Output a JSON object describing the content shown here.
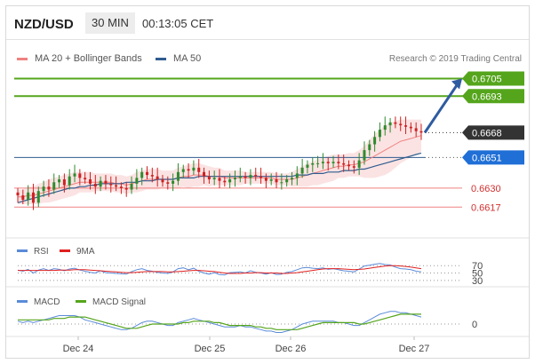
{
  "header": {
    "symbol": "NZD/USD",
    "timeframe": "30 MIN",
    "time": "00:13:05 CET"
  },
  "legend": {
    "items": [
      {
        "label": "MA 20 + Bollinger Bands",
        "color": "#f08080"
      },
      {
        "label": "MA 50",
        "color": "#2f5c8f"
      }
    ],
    "copyright": "Research © 2019 Trading Central"
  },
  "colors": {
    "up_candle": "#2e8b2e",
    "down_candle": "#cc2222",
    "band_fill": "#fbe3e3",
    "ma20": "#f08080",
    "ma50": "#2f5c8f",
    "resistance": "#55a51c",
    "support": "#f08080",
    "pivot": "#2f5c8f",
    "arrow": "#2f5ba0",
    "current": "#333333",
    "rsi": "#5b8bd8",
    "rsi9ma": "#e02020",
    "macd": "#5b8bd8",
    "macd_signal": "#55a51c"
  },
  "chart_data": [
    {
      "type": "candlestick",
      "title": "NZD/USD 30 MIN",
      "ylim": [
        0.6605,
        0.6712
      ],
      "x_tick_labels": [
        "Dec 24",
        "Dec 25",
        "Dec 26",
        "Dec 27"
      ],
      "levels": [
        {
          "value": 0.6705,
          "label": "0.6705",
          "kind": "resistance"
        },
        {
          "value": 0.6693,
          "label": "0.6693",
          "kind": "resistance"
        },
        {
          "value": 0.6668,
          "label": "0.6668",
          "kind": "current"
        },
        {
          "value": 0.6651,
          "label": "0.6651",
          "kind": "pivot"
        },
        {
          "value": 0.663,
          "label": "0.6630",
          "kind": "support"
        },
        {
          "value": 0.6617,
          "label": "0.6617",
          "kind": "support"
        }
      ],
      "close": [
        0.6625,
        0.6622,
        0.6627,
        0.662,
        0.6628,
        0.6631,
        0.6629,
        0.6634,
        0.6636,
        0.6632,
        0.6638,
        0.664,
        0.6637,
        0.6636,
        0.6633,
        0.6631,
        0.6635,
        0.6633,
        0.6632,
        0.6631,
        0.663,
        0.6629,
        0.6633,
        0.6637,
        0.6641,
        0.6639,
        0.6638,
        0.6636,
        0.6634,
        0.6633,
        0.6635,
        0.6641,
        0.6643,
        0.6642,
        0.6644,
        0.6641,
        0.6638,
        0.6636,
        0.6637,
        0.6635,
        0.6634,
        0.6636,
        0.6637,
        0.6638,
        0.6637,
        0.6639,
        0.6638,
        0.6637,
        0.6635,
        0.6636,
        0.6634,
        0.6634,
        0.6636,
        0.6637,
        0.664,
        0.6644,
        0.6646,
        0.6647,
        0.6647,
        0.6648,
        0.6647,
        0.6648,
        0.6647,
        0.6646,
        0.6645,
        0.6644,
        0.6649,
        0.6656,
        0.666,
        0.6665,
        0.667,
        0.6673,
        0.6675,
        0.6674,
        0.6673,
        0.6672,
        0.6671,
        0.6669,
        0.6668
      ],
      "ma20": [
        0.6624,
        0.6624,
        0.6625,
        0.6625,
        0.6626,
        0.6627,
        0.6628,
        0.6629,
        0.663,
        0.6631,
        0.6632,
        0.6633,
        0.6634,
        0.6634,
        0.6634,
        0.6634,
        0.6634,
        0.6634,
        0.6634,
        0.6633,
        0.6633,
        0.6632,
        0.6633,
        0.6634,
        0.6635,
        0.6636,
        0.6636,
        0.6636,
        0.6636,
        0.6636,
        0.6636,
        0.6637,
        0.6638,
        0.6638,
        0.6639,
        0.6639,
        0.6639,
        0.6638,
        0.6638,
        0.6638,
        0.6637,
        0.6637,
        0.6637,
        0.6637,
        0.6637,
        0.6637,
        0.6637,
        0.6637,
        0.6637,
        0.6637,
        0.6636,
        0.6636,
        0.6636,
        0.6636,
        0.6637,
        0.6638,
        0.6639,
        0.664,
        0.6641,
        0.6642,
        0.6643,
        0.6644,
        0.6645,
        0.6645,
        0.6646,
        0.6646,
        0.6647,
        0.6648,
        0.665,
        0.6652,
        0.6654,
        0.6656,
        0.6658,
        0.666,
        0.6662,
        0.6663,
        0.6664,
        0.6665,
        0.6666
      ],
      "band_half_width": [
        0.0005,
        0.0005,
        0.0006,
        0.0006,
        0.0007,
        0.0007,
        0.0008,
        0.0008,
        0.0008,
        0.0008,
        0.0008,
        0.0008,
        0.0007,
        0.0007,
        0.0007,
        0.0006,
        0.0006,
        0.0006,
        0.0006,
        0.0006,
        0.0006,
        0.0006,
        0.0006,
        0.0007,
        0.0007,
        0.0007,
        0.0007,
        0.0007,
        0.0006,
        0.0006,
        0.0006,
        0.0007,
        0.0007,
        0.0008,
        0.0008,
        0.0008,
        0.0007,
        0.0007,
        0.0006,
        0.0006,
        0.0005,
        0.0005,
        0.0005,
        0.0005,
        0.0004,
        0.0004,
        0.0004,
        0.0004,
        0.0004,
        0.0004,
        0.0004,
        0.0004,
        0.0004,
        0.0005,
        0.0006,
        0.0007,
        0.0008,
        0.0008,
        0.0009,
        0.0009,
        0.0009,
        0.0009,
        0.0008,
        0.0008,
        0.0008,
        0.0008,
        0.0009,
        0.0011,
        0.0013,
        0.0015,
        0.0016,
        0.0017,
        0.0017,
        0.0016,
        0.0015,
        0.0014,
        0.0013,
        0.0012,
        0.0011
      ],
      "ma50": [
        0.662,
        0.6621,
        0.6622,
        0.6623,
        0.6624,
        0.6625,
        0.6626,
        0.6627,
        0.6628,
        0.6629,
        0.663,
        0.663,
        0.6631,
        0.6631,
        0.6632,
        0.6632,
        0.6633,
        0.6633,
        0.6633,
        0.6633,
        0.6633,
        0.6634,
        0.6634,
        0.6634,
        0.6635,
        0.6635,
        0.6635,
        0.6636,
        0.6636,
        0.6636,
        0.6636,
        0.6637,
        0.6637,
        0.6637,
        0.6637,
        0.6638,
        0.6638,
        0.6638,
        0.6638,
        0.6638,
        0.6638,
        0.6638,
        0.6638,
        0.6638,
        0.6638,
        0.6638,
        0.6638,
        0.6638,
        0.6638,
        0.6638,
        0.6638,
        0.6638,
        0.6638,
        0.6638,
        0.6639,
        0.6639,
        0.6639,
        0.664,
        0.664,
        0.664,
        0.6641,
        0.6641,
        0.6641,
        0.6642,
        0.6642,
        0.6642,
        0.6643,
        0.6643,
        0.6644,
        0.6645,
        0.6646,
        0.6647,
        0.6648,
        0.6649,
        0.665,
        0.6651,
        0.6652,
        0.6653,
        0.6654
      ],
      "projection": {
        "from": 0.6668,
        "to": 0.6705
      }
    },
    {
      "type": "line",
      "legend": [
        "RSI",
        "9MA"
      ],
      "y_tick_labels": [
        "70",
        "50",
        "30"
      ],
      "ylim": [
        20,
        85
      ],
      "rsi": [
        58,
        55,
        60,
        50,
        58,
        62,
        57,
        62,
        60,
        56,
        61,
        63,
        58,
        55,
        52,
        50,
        56,
        51,
        50,
        49,
        48,
        47,
        54,
        59,
        62,
        57,
        55,
        52,
        50,
        49,
        53,
        62,
        64,
        59,
        63,
        55,
        50,
        47,
        51,
        46,
        45,
        51,
        52,
        53,
        50,
        56,
        52,
        50,
        47,
        51,
        46,
        47,
        52,
        54,
        59,
        64,
        65,
        63,
        62,
        64,
        60,
        62,
        59,
        56,
        55,
        53,
        61,
        69,
        71,
        74,
        76,
        73,
        72,
        66,
        62,
        61,
        59,
        55,
        53
      ],
      "ma9": [
        57,
        57,
        57,
        57,
        57,
        57,
        57,
        57,
        58,
        58,
        58,
        59,
        59,
        59,
        58,
        57,
        56,
        55,
        54,
        53,
        52,
        51,
        51,
        52,
        53,
        54,
        54,
        54,
        54,
        53,
        53,
        54,
        55,
        56,
        57,
        57,
        56,
        55,
        54,
        52,
        50,
        49,
        49,
        49,
        50,
        50,
        51,
        51,
        50,
        50,
        50,
        49,
        49,
        50,
        51,
        53,
        55,
        57,
        59,
        61,
        62,
        62,
        62,
        61,
        60,
        59,
        60,
        61,
        63,
        65,
        67,
        69,
        70,
        70,
        69,
        68,
        66,
        64,
        62
      ]
    },
    {
      "type": "line",
      "legend": [
        "MACD",
        "MACD Signal"
      ],
      "y_tick_labels": [
        "0"
      ],
      "ylim": [
        -0.0012,
        0.0012
      ],
      "macd": [
        0.0002,
        0.0001,
        0.0002,
        0.0001,
        0.0002,
        0.0003,
        0.0004,
        0.0005,
        0.0006,
        0.0006,
        0.0006,
        0.0006,
        0.0005,
        0.0003,
        0.0002,
        0.0001,
        0.0,
        -0.0001,
        -0.0002,
        -0.0003,
        -0.0004,
        -0.0004,
        -0.0003,
        -0.0001,
        0.0001,
        0.0002,
        0.0002,
        0.0001,
        0.0,
        -0.0001,
        -0.0001,
        0.0001,
        0.0002,
        0.0003,
        0.0004,
        0.0003,
        0.0002,
        0.0001,
        0.0,
        -0.0001,
        -0.0002,
        -0.0002,
        -0.0002,
        -0.0001,
        -0.0002,
        -0.0002,
        -0.0003,
        -0.0004,
        -0.0005,
        -0.0005,
        -0.0006,
        -0.0006,
        -0.0005,
        -0.0004,
        -0.0002,
        0.0,
        0.0001,
        0.0002,
        0.0002,
        0.0002,
        0.0002,
        0.0002,
        0.0001,
        0.0001,
        0.0,
        -0.0001,
        -0.0001,
        0.0001,
        0.0003,
        0.0005,
        0.0007,
        0.0008,
        0.0009,
        0.0009,
        0.0008,
        0.0008,
        0.0007,
        0.0006,
        0.0005
      ],
      "signal": [
        0.0003,
        0.0003,
        0.0003,
        0.0003,
        0.0003,
        0.0003,
        0.0003,
        0.0004,
        0.0004,
        0.0004,
        0.0005,
        0.0005,
        0.0005,
        0.0005,
        0.0004,
        0.0003,
        0.0002,
        0.0001,
        0.0,
        -0.0001,
        -0.0002,
        -0.0003,
        -0.0003,
        -0.0003,
        -0.0002,
        -0.0001,
        0.0,
        0.0,
        0.0,
        0.0,
        0.0,
        0.0,
        0.0001,
        0.0001,
        0.0002,
        0.0002,
        0.0002,
        0.0002,
        0.0001,
        0.0001,
        0.0,
        -0.0001,
        -0.0001,
        -0.0001,
        -0.0001,
        -0.0001,
        -0.0002,
        -0.0002,
        -0.0003,
        -0.0003,
        -0.0004,
        -0.0004,
        -0.0004,
        -0.0004,
        -0.0004,
        -0.0003,
        -0.0002,
        -0.0001,
        0.0,
        0.0001,
        0.0001,
        0.0001,
        0.0001,
        0.0001,
        0.0001,
        0.0001,
        0.0,
        0.0,
        0.0001,
        0.0002,
        0.0003,
        0.0004,
        0.0005,
        0.0006,
        0.0007,
        0.0007,
        0.0007,
        0.0007,
        0.0007
      ]
    }
  ]
}
